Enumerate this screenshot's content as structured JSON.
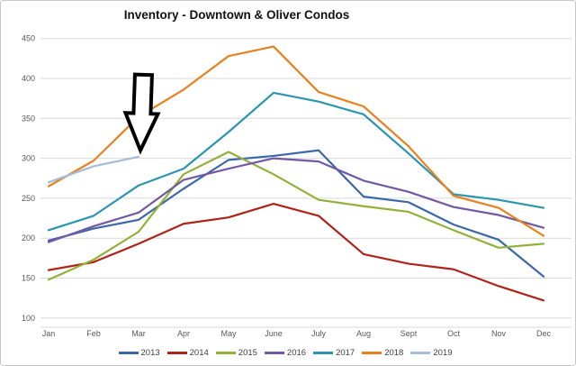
{
  "chart": {
    "title": "Inventory - Downtown & Oliver Condos",
    "axis_text_color": "#595959",
    "grid_color": "#d9d9d9",
    "legend_text_color": "#404040"
  },
  "chart_data": {
    "type": "line",
    "title": "Inventory - Downtown & Oliver Condos",
    "categories": [
      "Jan",
      "Feb",
      "Mar",
      "Apr",
      "May",
      "June",
      "July",
      "Aug",
      "Sept",
      "Oct",
      "Nov",
      "Dec"
    ],
    "ylim": [
      100,
      450
    ],
    "yticks": [
      450,
      400,
      350,
      300,
      250,
      200,
      150,
      100
    ],
    "grid": true,
    "legend_position": "bottom",
    "series": [
      {
        "name": "2013",
        "color": "#3d68a8",
        "values": [
          197,
          212,
          223,
          262,
          298,
          303,
          310,
          252,
          245,
          217,
          198,
          152
        ]
      },
      {
        "name": "2014",
        "color": "#b02318",
        "values": [
          160,
          170,
          193,
          218,
          226,
          243,
          228,
          180,
          168,
          161,
          140,
          122
        ]
      },
      {
        "name": "2015",
        "color": "#92b139",
        "values": [
          148,
          173,
          208,
          280,
          308,
          280,
          248,
          240,
          233,
          210,
          188,
          193
        ]
      },
      {
        "name": "2016",
        "color": "#7258a5",
        "values": [
          195,
          215,
          232,
          273,
          287,
          300,
          296,
          272,
          258,
          239,
          229,
          213
        ]
      },
      {
        "name": "2017",
        "color": "#2a96b0",
        "values": [
          210,
          228,
          266,
          287,
          333,
          382,
          371,
          355,
          306,
          255,
          248,
          238
        ]
      },
      {
        "name": "2018",
        "color": "#e8811e",
        "values": [
          265,
          297,
          352,
          386,
          428,
          440,
          383,
          365,
          315,
          253,
          238,
          203
        ]
      },
      {
        "name": "2019",
        "color": "#a4bcde",
        "values": [
          270,
          290,
          302,
          null,
          null,
          null,
          null,
          null,
          null,
          null,
          null,
          null
        ]
      }
    ],
    "annotation": {
      "type": "block-arrow-down",
      "points_at_series": "2019",
      "points_at_category": "Mar",
      "points_at_value": 302,
      "outline_color": "#000000",
      "fill_color": "#ffffff"
    }
  }
}
